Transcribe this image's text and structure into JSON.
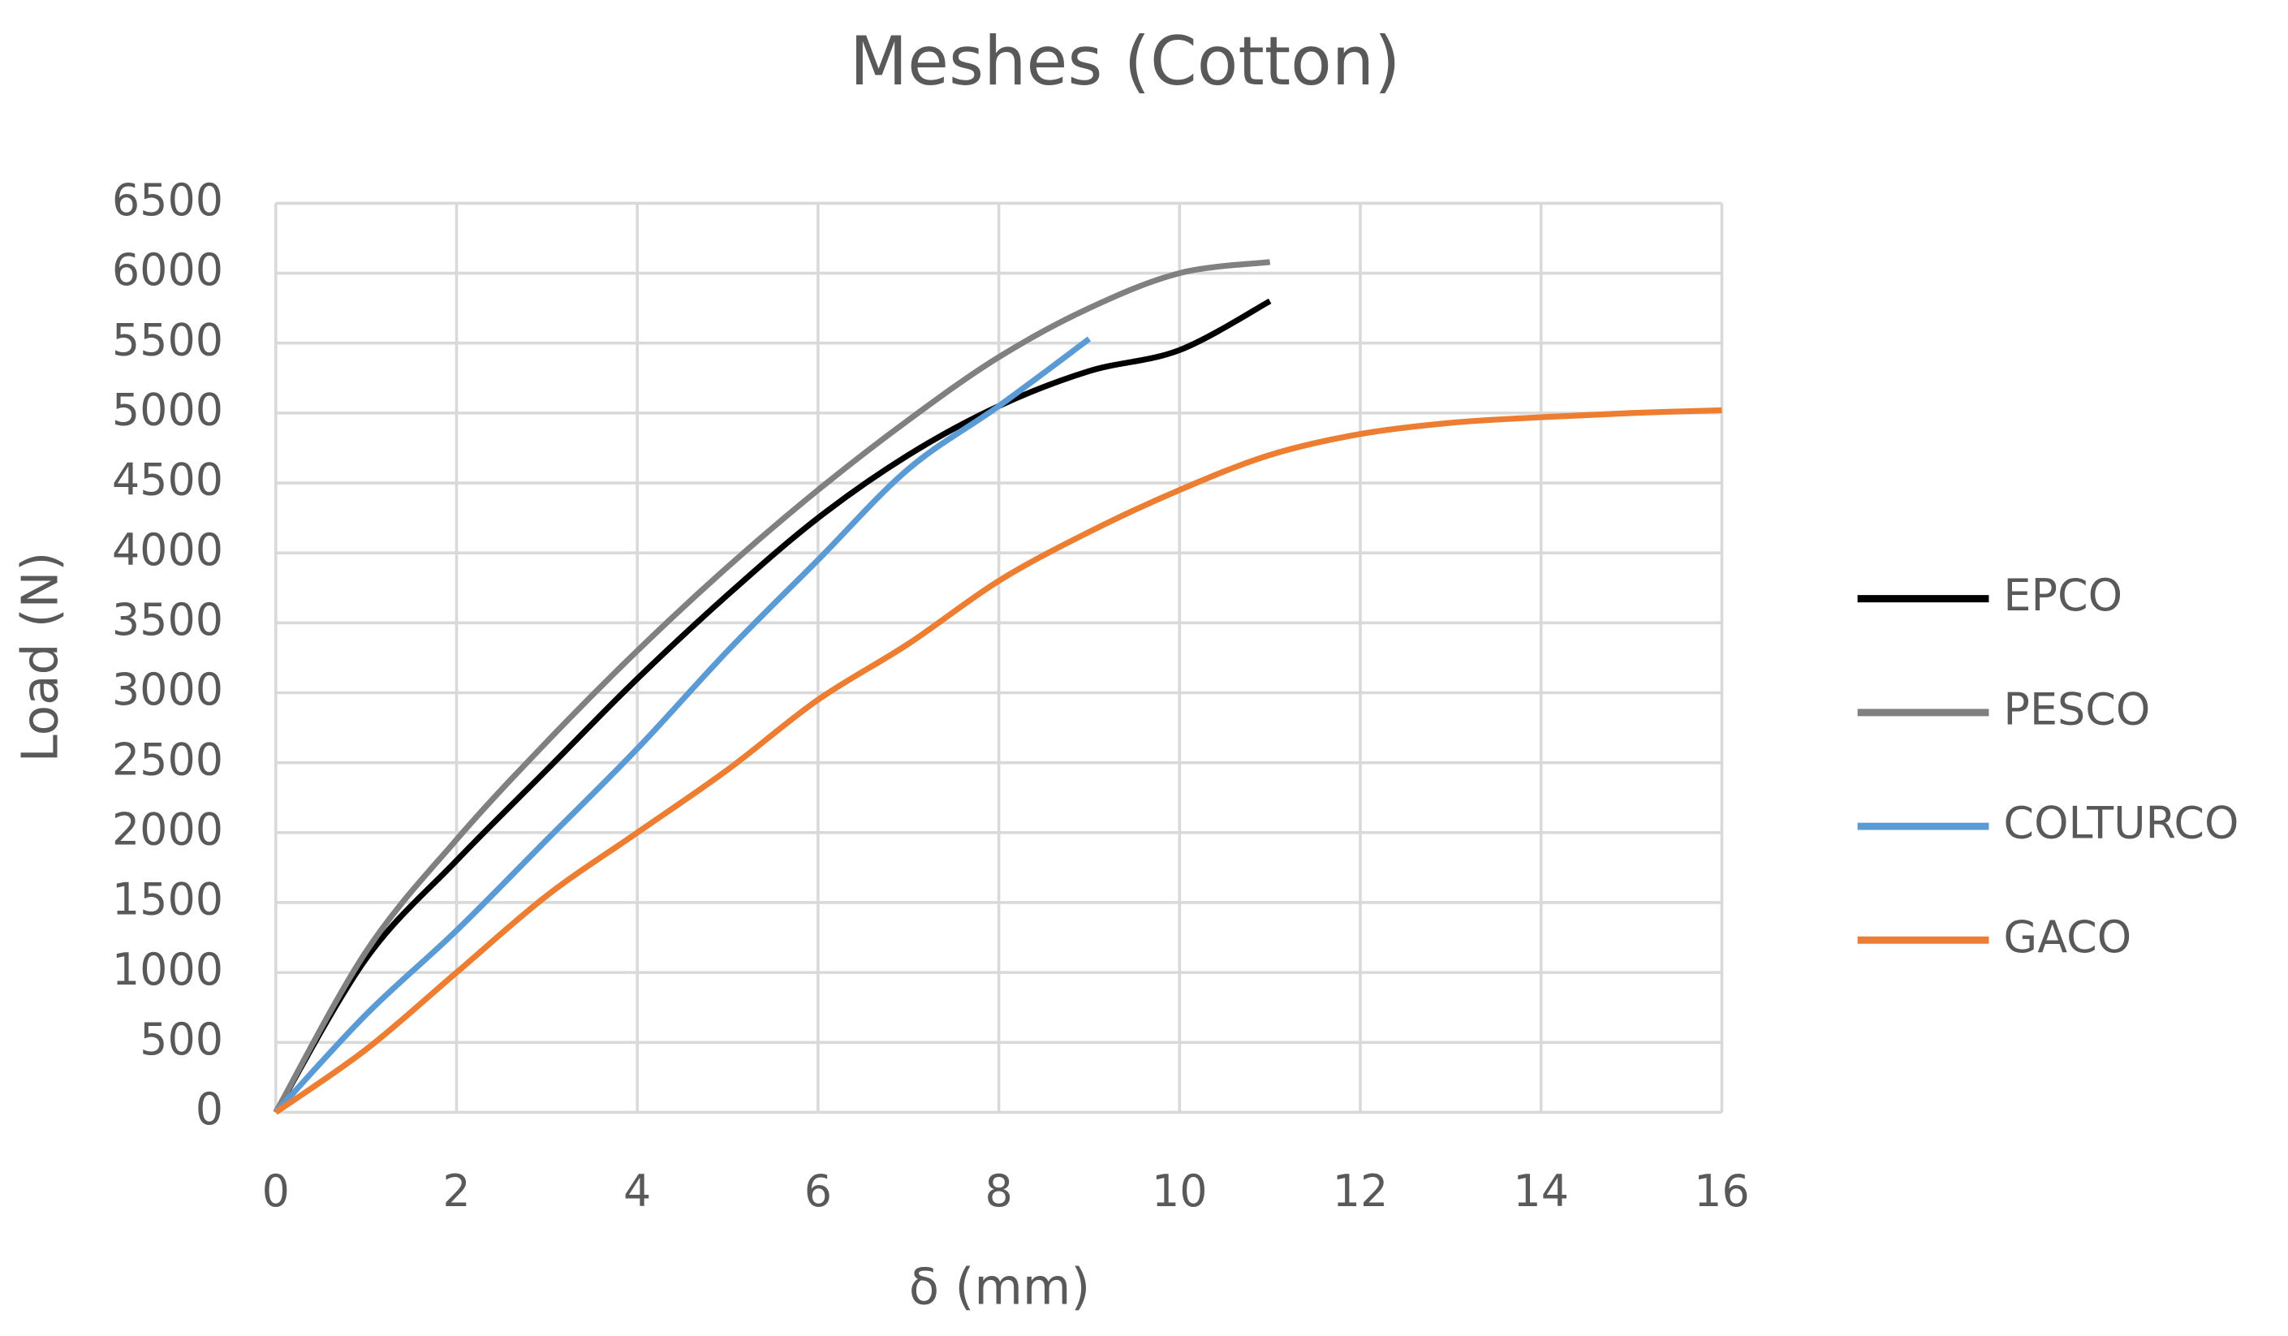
{
  "chart_data": {
    "type": "line",
    "title": "Meshes (Cotton)",
    "x_label": "δ (mm)",
    "y_label": "Load (N)",
    "x": [
      0,
      1,
      2,
      3,
      4,
      5,
      6,
      7,
      8,
      9,
      10,
      11,
      12,
      13,
      14,
      15,
      16
    ],
    "series": [
      {
        "name": "EPCO",
        "color": "#000000",
        "values": [
          0,
          1100,
          1800,
          2450,
          3100,
          3700,
          4250,
          4700,
          5050,
          5300,
          5450,
          5800,
          null,
          null,
          null,
          null,
          null
        ]
      },
      {
        "name": "PESCO",
        "color": "#808080",
        "values": [
          0,
          1150,
          1950,
          2650,
          3300,
          3900,
          4450,
          4950,
          5400,
          5750,
          6000,
          6080,
          null,
          null,
          null,
          null,
          null
        ]
      },
      {
        "name": "COLTURCO",
        "color": "#5b9bd5",
        "values": [
          0,
          700,
          1300,
          1950,
          2600,
          3300,
          3950,
          4600,
          5050,
          5530,
          null,
          null,
          null,
          null,
          null,
          null,
          null
        ]
      },
      {
        "name": "GACO",
        "color": "#ed7d31",
        "values": [
          0,
          450,
          1000,
          1550,
          2000,
          2450,
          2950,
          3350,
          3800,
          4150,
          4450,
          4700,
          4850,
          4930,
          4970,
          5000,
          5020
        ]
      }
    ],
    "xlim": [
      0,
      16
    ],
    "xticks": [
      0,
      2,
      4,
      6,
      8,
      10,
      12,
      14,
      16
    ],
    "ylim": [
      0,
      6500
    ],
    "yticks": [
      0,
      500,
      1000,
      1500,
      2000,
      2500,
      3000,
      3500,
      4000,
      4500,
      5000,
      5500,
      6000,
      6500
    ],
    "grid": true,
    "legend": "right"
  }
}
